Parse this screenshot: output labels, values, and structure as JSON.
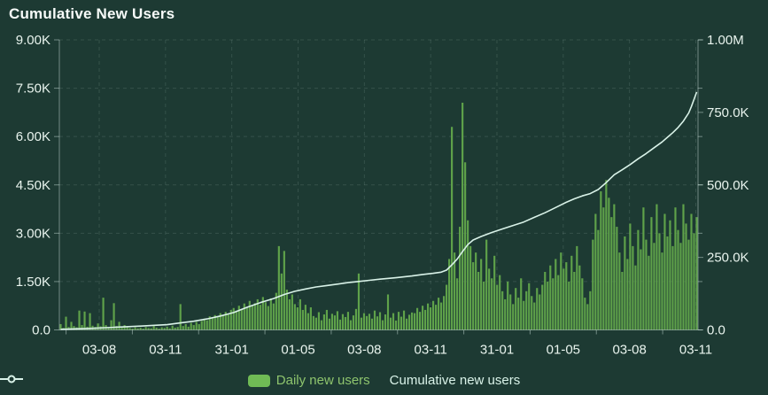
{
  "title": "Cumulative New Users",
  "legend": {
    "daily_label": "Daily new users",
    "cumulative_label": "Cumulative new users"
  },
  "colors": {
    "background": "#1d3a33",
    "bar": "#5fa24a",
    "line": "#d9f2e8",
    "legend_swatch": "#70bb55",
    "axis_text": "#e9f4ee",
    "legend_daily_text": "#8ec46d",
    "legend_cumulative_text": "#d9f2e8"
  },
  "chart_data": {
    "type": "bar",
    "subtype": "combo-bar-line-dual-axis",
    "title": "Cumulative New Users",
    "grid": true,
    "legend_position": "bottom",
    "x_axis": {
      "tick_labels": [
        "03-08",
        "03-11",
        "31-01",
        "01-05",
        "03-08",
        "03-11",
        "31-01",
        "01-05",
        "03-08",
        "03-11"
      ]
    },
    "y_axis_left": {
      "label": "Daily new users",
      "min": 0,
      "max": 9000,
      "tick_values": [
        0,
        1500,
        3000,
        4500,
        6000,
        7500,
        9000
      ],
      "tick_labels": [
        "0.0",
        "1.50K",
        "3.00K",
        "4.50K",
        "6.00K",
        "7.50K",
        "9.00K"
      ]
    },
    "y_axis_right": {
      "label": "Cumulative new users",
      "min": 0,
      "max": 1000000,
      "tick_values": [
        0,
        250000,
        500000,
        750000,
        1000000
      ],
      "tick_labels": [
        "0.0",
        "250.0K",
        "500.0K",
        "750.0K",
        "1.00M"
      ]
    },
    "series": [
      {
        "name": "Daily new users",
        "type": "bar",
        "y_axis": "left",
        "values": [
          180,
          60,
          410,
          90,
          250,
          120,
          80,
          600,
          150,
          570,
          100,
          520,
          130,
          90,
          200,
          110,
          1000,
          150,
          90,
          300,
          830,
          120,
          250,
          80,
          150,
          100,
          60,
          40,
          80,
          50,
          70,
          40,
          90,
          60,
          50,
          120,
          70,
          40,
          80,
          60,
          100,
          50,
          130,
          70,
          90,
          800,
          120,
          180,
          100,
          220,
          150,
          250,
          180,
          280,
          350,
          300,
          420,
          380,
          460,
          400,
          520,
          450,
          560,
          500,
          620,
          680,
          600,
          750,
          650,
          820,
          700,
          900,
          760,
          830,
          950,
          780,
          1020,
          860,
          740,
          980,
          820,
          1150,
          2600,
          1750,
          2450,
          1250,
          950,
          1100,
          800,
          700,
          950,
          620,
          780,
          520,
          700,
          430,
          380,
          550,
          300,
          480,
          620,
          350,
          500,
          450,
          580,
          320,
          490,
          400,
          560,
          300,
          450,
          650,
          1750,
          380,
          520,
          430,
          500,
          350,
          600,
          420,
          550,
          300,
          480,
          1100,
          380,
          520,
          290,
          560,
          410,
          600,
          350,
          470,
          540,
          520,
          680,
          560,
          750,
          620,
          820,
          700,
          900,
          780,
          1000,
          850,
          1050,
          1400,
          2200,
          6300,
          2400,
          1600,
          3200,
          7050,
          5200,
          3400,
          2600,
          2100,
          2400,
          1800,
          2200,
          1500,
          2800,
          1900,
          1600,
          2300,
          1400,
          1700,
          1200,
          950,
          1500,
          1100,
          800,
          1300,
          1000,
          1600,
          900,
          1200,
          1450,
          1050,
          850,
          1300,
          1100,
          1400,
          1800,
          1500,
          2000,
          1600,
          2200,
          1700,
          2400,
          1900,
          2100,
          1500,
          2300,
          1800,
          2600,
          2000,
          1600,
          1000,
          800,
          1200,
          2800,
          3600,
          3100,
          4300,
          3800,
          4650,
          4100,
          3500,
          3900,
          3200,
          2400,
          1800,
          2900,
          2200,
          3300,
          2600,
          2000,
          3100,
          2500,
          3800,
          2800,
          2300,
          3500,
          2700,
          3900,
          3000,
          2400,
          3600,
          2900,
          3400,
          2600,
          3800,
          3100,
          2700,
          3900,
          3300,
          2800,
          3600,
          3000,
          3500
        ]
      },
      {
        "name": "Cumulative new users",
        "type": "line",
        "y_axis": "right",
        "points_index_value": [
          [
            0,
            2000
          ],
          [
            10,
            5000
          ],
          [
            20,
            9000
          ],
          [
            30,
            13000
          ],
          [
            40,
            18000
          ],
          [
            45,
            24000
          ],
          [
            50,
            30000
          ],
          [
            55,
            38000
          ],
          [
            60,
            48000
          ],
          [
            65,
            60000
          ],
          [
            70,
            78000
          ],
          [
            75,
            94000
          ],
          [
            80,
            108000
          ],
          [
            84,
            122000
          ],
          [
            88,
            133000
          ],
          [
            92,
            141000
          ],
          [
            96,
            148000
          ],
          [
            100,
            153000
          ],
          [
            104,
            158000
          ],
          [
            108,
            163000
          ],
          [
            112,
            167000
          ],
          [
            116,
            171000
          ],
          [
            120,
            175000
          ],
          [
            126,
            180000
          ],
          [
            132,
            186000
          ],
          [
            136,
            191000
          ],
          [
            140,
            195000
          ],
          [
            143,
            199000
          ],
          [
            145,
            206000
          ],
          [
            147,
            224000
          ],
          [
            149,
            244000
          ],
          [
            151,
            270000
          ],
          [
            153,
            294000
          ],
          [
            155,
            310000
          ],
          [
            158,
            322000
          ],
          [
            162,
            336000
          ],
          [
            166,
            348000
          ],
          [
            170,
            360000
          ],
          [
            174,
            372000
          ],
          [
            178,
            388000
          ],
          [
            182,
            404000
          ],
          [
            186,
            422000
          ],
          [
            190,
            440000
          ],
          [
            193,
            452000
          ],
          [
            196,
            462000
          ],
          [
            199,
            470000
          ],
          [
            202,
            484000
          ],
          [
            205,
            508000
          ],
          [
            208,
            535000
          ],
          [
            211,
            552000
          ],
          [
            214,
            570000
          ],
          [
            217,
            590000
          ],
          [
            220,
            608000
          ],
          [
            223,
            628000
          ],
          [
            226,
            648000
          ],
          [
            228,
            664000
          ],
          [
            230,
            680000
          ],
          [
            232,
            698000
          ],
          [
            234,
            720000
          ],
          [
            236,
            748000
          ],
          [
            237,
            770000
          ],
          [
            238,
            795000
          ],
          [
            239,
            820000
          ]
        ]
      }
    ]
  }
}
